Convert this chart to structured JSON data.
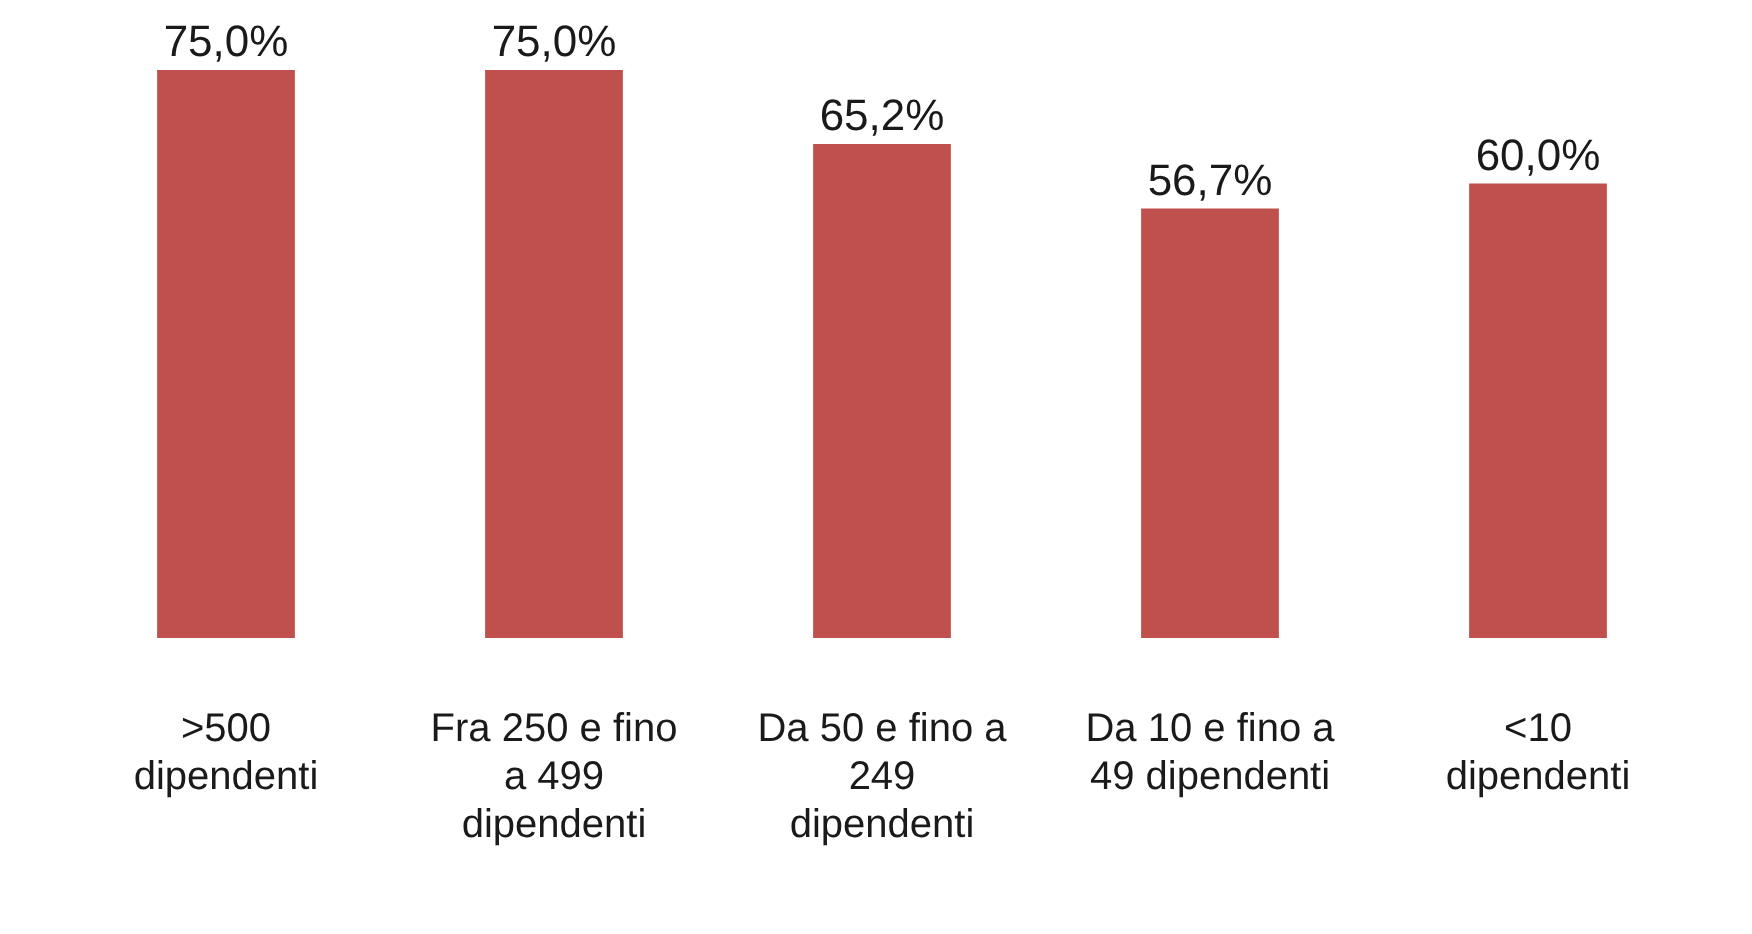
{
  "chart_data": {
    "type": "bar",
    "categories": [
      ">500 dipendenti",
      "Fra 250 e fino a 499 dipendenti",
      "Da 50 e fino a 249 dipendenti",
      "Da 10 e fino a 49 dipendenti",
      "<10 dipendenti"
    ],
    "values": [
      75.0,
      75.0,
      65.2,
      56.7,
      60.0
    ],
    "value_labels": [
      "75,0%",
      "75,0%",
      "65,2%",
      "56,7%",
      "60,0%"
    ],
    "color": "#c0504d"
  }
}
